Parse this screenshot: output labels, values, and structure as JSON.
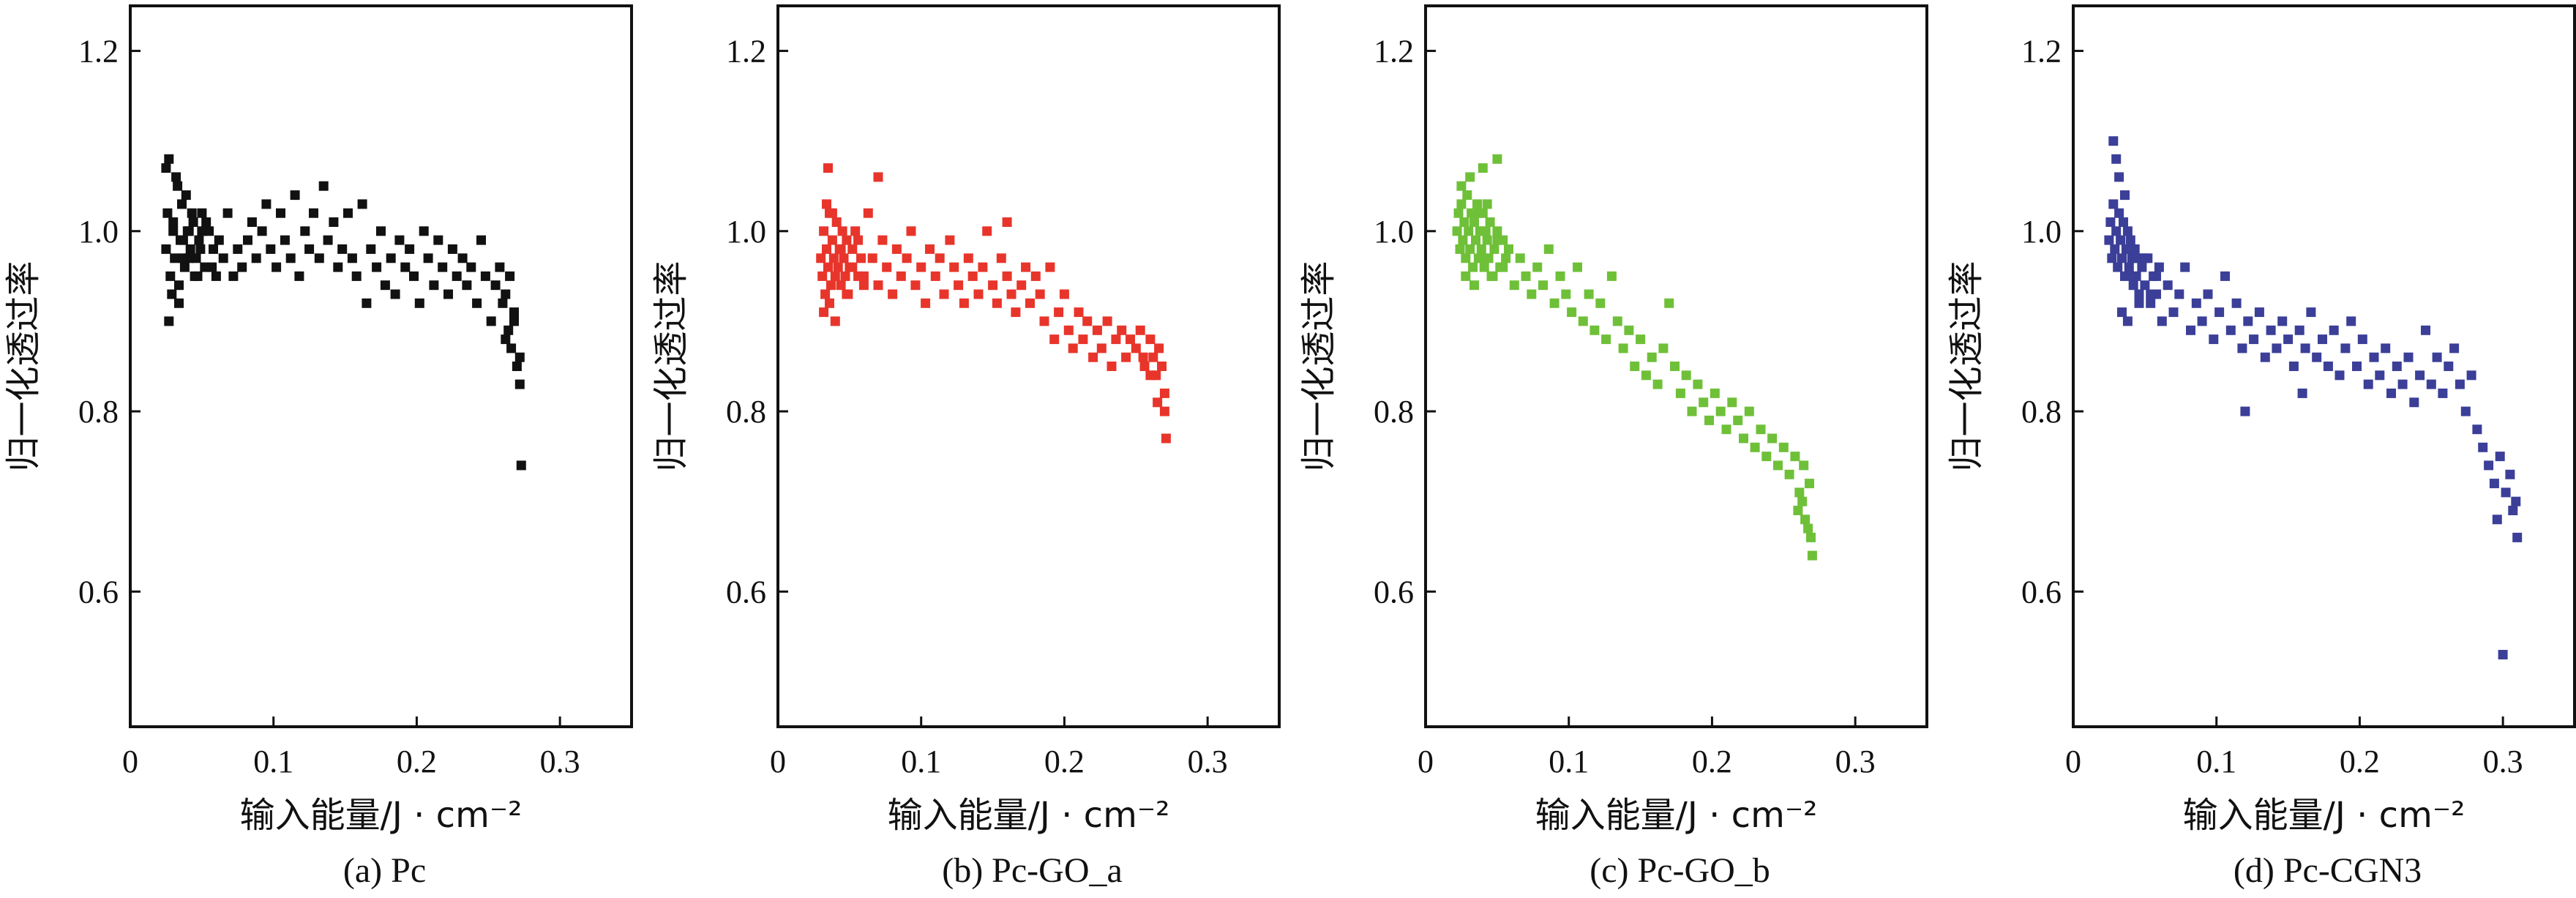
{
  "figure": {
    "colors": {
      "black": "#111111",
      "red": "#e8352b",
      "green": "#6fc039",
      "blue": "#3b3f98"
    }
  },
  "chart_data": [
    {
      "type": "scatter",
      "caption": "(a) Pc",
      "xlabel": "输入能量/J · cm⁻²",
      "ylabel": "归一化透过率",
      "xlim": [
        0,
        0.35
      ],
      "ylim": [
        0.45,
        1.25
      ],
      "xticks": [
        0,
        0.1,
        0.2,
        0.3
      ],
      "xtick_labels": [
        "0",
        "0.1",
        "0.2",
        "0.3"
      ],
      "yticks": [
        0.6,
        0.8,
        1.0,
        1.2
      ],
      "ytick_labels": [
        "0.6",
        "0.8",
        "1.0",
        "1.2"
      ],
      "grid": false,
      "color": "#111111",
      "x": [
        0.025,
        0.026,
        0.028,
        0.03,
        0.031,
        0.033,
        0.035,
        0.036,
        0.038,
        0.04,
        0.042,
        0.044,
        0.046,
        0.048,
        0.05,
        0.052,
        0.055,
        0.058,
        0.06,
        0.025,
        0.027,
        0.029,
        0.032,
        0.034,
        0.037,
        0.039,
        0.041,
        0.043,
        0.047,
        0.05,
        0.027,
        0.03,
        0.034,
        0.037,
        0.041,
        0.045,
        0.049,
        0.053,
        0.057,
        0.062,
        0.065,
        0.068,
        0.072,
        0.075,
        0.078,
        0.082,
        0.085,
        0.088,
        0.092,
        0.095,
        0.098,
        0.102,
        0.105,
        0.108,
        0.112,
        0.115,
        0.118,
        0.122,
        0.125,
        0.128,
        0.132,
        0.135,
        0.138,
        0.142,
        0.145,
        0.148,
        0.152,
        0.155,
        0.158,
        0.162,
        0.165,
        0.168,
        0.172,
        0.175,
        0.178,
        0.182,
        0.185,
        0.188,
        0.192,
        0.195,
        0.198,
        0.202,
        0.205,
        0.208,
        0.212,
        0.215,
        0.218,
        0.222,
        0.225,
        0.228,
        0.232,
        0.235,
        0.238,
        0.242,
        0.245,
        0.248,
        0.252,
        0.255,
        0.258,
        0.26,
        0.262,
        0.264,
        0.266,
        0.268,
        0.27,
        0.272,
        0.273,
        0.268,
        0.265,
        0.262,
        0.272
      ],
      "y": [
        0.98,
        1.02,
        0.95,
        1.0,
        0.97,
        1.05,
        0.99,
        1.03,
        0.96,
        1.0,
        0.98,
        1.01,
        0.97,
        0.99,
        1.02,
        0.96,
        1.0,
        0.98,
        0.95,
        1.07,
        1.08,
        0.93,
        1.06,
        0.92,
        0.99,
        1.04,
        0.97,
        1.02,
        0.95,
        1.0,
        0.9,
        1.01,
        0.94,
        0.97,
        1.0,
        0.95,
        0.98,
        1.01,
        0.96,
        0.99,
        0.97,
        1.02,
        0.95,
        0.98,
        0.96,
        0.99,
        1.01,
        0.97,
        1.0,
        1.03,
        0.98,
        0.96,
        1.02,
        0.99,
        0.97,
        1.04,
        0.95,
        1.0,
        0.98,
        1.02,
        0.97,
        1.05,
        0.99,
        1.01,
        0.96,
        0.98,
        1.02,
        0.97,
        0.95,
        1.03,
        0.92,
        0.98,
        0.96,
        1.0,
        0.94,
        0.97,
        0.93,
        0.99,
        0.96,
        0.98,
        0.95,
        0.92,
        1.0,
        0.97,
        0.94,
        0.99,
        0.96,
        0.93,
        0.98,
        0.95,
        0.97,
        0.94,
        0.96,
        0.92,
        0.99,
        0.95,
        0.9,
        0.94,
        0.96,
        0.92,
        0.88,
        0.89,
        0.87,
        0.9,
        0.85,
        0.86,
        0.74,
        0.91,
        0.95,
        0.93,
        0.83
      ]
    },
    {
      "type": "scatter",
      "caption": "(b) Pc-GO_a",
      "xlabel": "输入能量/J · cm⁻²",
      "ylabel": "归一化透过率",
      "xlim": [
        0,
        0.35
      ],
      "ylim": [
        0.45,
        1.25
      ],
      "xticks": [
        0,
        0.1,
        0.2,
        0.3
      ],
      "xtick_labels": [
        "0",
        "0.1",
        "0.2",
        "0.3"
      ],
      "yticks": [
        0.6,
        0.8,
        1.0,
        1.2
      ],
      "ytick_labels": [
        "0.6",
        "0.8",
        "1.0",
        "1.2"
      ],
      "grid": false,
      "color": "#e8352b",
      "x": [
        0.03,
        0.031,
        0.032,
        0.033,
        0.034,
        0.035,
        0.036,
        0.037,
        0.038,
        0.039,
        0.04,
        0.041,
        0.042,
        0.043,
        0.044,
        0.045,
        0.046,
        0.047,
        0.048,
        0.049,
        0.05,
        0.052,
        0.054,
        0.056,
        0.058,
        0.06,
        0.032,
        0.034,
        0.036,
        0.038,
        0.04,
        0.044,
        0.048,
        0.052,
        0.056,
        0.06,
        0.063,
        0.066,
        0.07,
        0.073,
        0.076,
        0.08,
        0.083,
        0.086,
        0.09,
        0.093,
        0.096,
        0.1,
        0.103,
        0.106,
        0.11,
        0.113,
        0.116,
        0.12,
        0.123,
        0.126,
        0.13,
        0.133,
        0.136,
        0.14,
        0.143,
        0.146,
        0.15,
        0.153,
        0.156,
        0.16,
        0.163,
        0.166,
        0.17,
        0.173,
        0.176,
        0.18,
        0.183,
        0.186,
        0.19,
        0.193,
        0.196,
        0.2,
        0.203,
        0.206,
        0.21,
        0.213,
        0.216,
        0.22,
        0.223,
        0.226,
        0.23,
        0.233,
        0.236,
        0.24,
        0.243,
        0.246,
        0.25,
        0.253,
        0.256,
        0.26,
        0.262,
        0.264,
        0.266,
        0.268,
        0.27,
        0.271,
        0.265,
        0.26,
        0.255,
        0.27,
        0.035,
        0.07,
        0.16
      ],
      "y": [
        0.97,
        0.95,
        1.0,
        0.93,
        0.98,
        0.96,
        1.02,
        0.94,
        0.99,
        0.97,
        0.95,
        1.01,
        0.96,
        0.98,
        0.94,
        1.0,
        0.97,
        0.95,
        0.99,
        0.93,
        0.96,
        0.98,
        1.0,
        0.95,
        0.97,
        0.94,
        0.91,
        1.03,
        0.92,
        1.02,
        0.9,
        0.98,
        0.93,
        0.96,
        0.99,
        0.95,
        1.02,
        0.97,
        0.94,
        0.99,
        0.96,
        0.93,
        0.98,
        0.95,
        0.97,
        1.0,
        0.94,
        0.96,
        0.92,
        0.98,
        0.95,
        0.97,
        0.93,
        0.99,
        0.96,
        0.94,
        0.92,
        0.97,
        0.95,
        0.93,
        0.96,
        1.0,
        0.94,
        0.92,
        0.97,
        0.95,
        0.93,
        0.91,
        0.94,
        0.96,
        0.92,
        0.95,
        0.93,
        0.9,
        0.96,
        0.88,
        0.91,
        0.93,
        0.89,
        0.87,
        0.91,
        0.88,
        0.9,
        0.86,
        0.89,
        0.87,
        0.9,
        0.85,
        0.88,
        0.89,
        0.86,
        0.88,
        0.87,
        0.89,
        0.85,
        0.88,
        0.86,
        0.84,
        0.87,
        0.85,
        0.82,
        0.77,
        0.81,
        0.84,
        0.86,
        0.8,
        1.07,
        1.06,
        1.01
      ]
    },
    {
      "type": "scatter",
      "caption": "(c) Pc-GO_b",
      "xlabel": "输入能量/J · cm⁻²",
      "ylabel": "归一化透过率",
      "xlim": [
        0,
        0.35
      ],
      "ylim": [
        0.45,
        1.25
      ],
      "xticks": [
        0,
        0.1,
        0.2,
        0.3
      ],
      "xtick_labels": [
        "0",
        "0.1",
        "0.2",
        "0.3"
      ],
      "yticks": [
        0.6,
        0.8,
        1.0,
        1.2
      ],
      "ytick_labels": [
        "0.6",
        "0.8",
        "1.0",
        "1.2"
      ],
      "grid": false,
      "color": "#6fc039",
      "x": [
        0.022,
        0.023,
        0.024,
        0.025,
        0.026,
        0.027,
        0.028,
        0.029,
        0.03,
        0.031,
        0.032,
        0.033,
        0.034,
        0.035,
        0.036,
        0.037,
        0.038,
        0.039,
        0.04,
        0.041,
        0.042,
        0.043,
        0.044,
        0.045,
        0.046,
        0.048,
        0.05,
        0.052,
        0.054,
        0.056,
        0.025,
        0.028,
        0.031,
        0.034,
        0.037,
        0.04,
        0.043,
        0.047,
        0.05,
        0.054,
        0.058,
        0.062,
        0.066,
        0.07,
        0.074,
        0.078,
        0.082,
        0.086,
        0.09,
        0.094,
        0.098,
        0.102,
        0.106,
        0.11,
        0.114,
        0.118,
        0.122,
        0.126,
        0.13,
        0.134,
        0.138,
        0.142,
        0.146,
        0.15,
        0.154,
        0.158,
        0.162,
        0.166,
        0.17,
        0.174,
        0.178,
        0.182,
        0.186,
        0.19,
        0.194,
        0.198,
        0.202,
        0.206,
        0.21,
        0.214,
        0.218,
        0.222,
        0.226,
        0.23,
        0.234,
        0.238,
        0.242,
        0.246,
        0.25,
        0.254,
        0.258,
        0.261,
        0.263,
        0.265,
        0.267,
        0.269,
        0.27,
        0.268,
        0.264,
        0.26,
        0.04,
        0.05
      ],
      "y": [
        1.0,
        1.02,
        0.98,
        1.03,
        0.99,
        1.01,
        0.97,
        1.04,
        1.0,
        0.98,
        1.02,
        0.96,
        1.01,
        0.99,
        1.03,
        0.97,
        1.0,
        0.98,
        1.02,
        0.96,
        1.0,
        0.99,
        0.97,
        1.01,
        0.95,
        0.98,
        1.0,
        0.96,
        0.99,
        0.97,
        1.05,
        0.95,
        1.06,
        0.94,
        1.02,
        0.97,
        1.03,
        0.95,
        0.99,
        0.96,
        0.98,
        0.94,
        0.97,
        0.95,
        0.93,
        0.96,
        0.94,
        0.98,
        0.92,
        0.95,
        0.93,
        0.91,
        0.96,
        0.9,
        0.93,
        0.89,
        0.92,
        0.88,
        0.95,
        0.9,
        0.87,
        0.89,
        0.85,
        0.88,
        0.84,
        0.86,
        0.83,
        0.87,
        0.92,
        0.85,
        0.82,
        0.84,
        0.8,
        0.83,
        0.81,
        0.79,
        0.82,
        0.8,
        0.78,
        0.81,
        0.79,
        0.77,
        0.8,
        0.76,
        0.78,
        0.75,
        0.77,
        0.74,
        0.76,
        0.73,
        0.75,
        0.71,
        0.7,
        0.68,
        0.67,
        0.66,
        0.64,
        0.72,
        0.74,
        0.69,
        1.07,
        1.08
      ]
    },
    {
      "type": "scatter",
      "caption": "(d) Pc-CGN3",
      "xlabel": "输入能量/J · cm⁻²",
      "ylabel": "归一化透过率",
      "xlim": [
        0,
        0.35
      ],
      "ylim": [
        0.45,
        1.25
      ],
      "xticks": [
        0,
        0.1,
        0.2,
        0.3
      ],
      "xtick_labels": [
        "0",
        "0.1",
        "0.2",
        "0.3"
      ],
      "yticks": [
        0.6,
        0.8,
        1.0,
        1.2
      ],
      "ytick_labels": [
        "0.6",
        "0.8",
        "1.0",
        "1.2"
      ],
      "grid": false,
      "color": "#3b3f98",
      "x": [
        0.025,
        0.026,
        0.027,
        0.028,
        0.029,
        0.03,
        0.031,
        0.032,
        0.033,
        0.034,
        0.035,
        0.036,
        0.037,
        0.038,
        0.039,
        0.04,
        0.041,
        0.042,
        0.043,
        0.044,
        0.045,
        0.046,
        0.048,
        0.05,
        0.052,
        0.054,
        0.056,
        0.058,
        0.06,
        0.028,
        0.03,
        0.032,
        0.034,
        0.036,
        0.038,
        0.042,
        0.046,
        0.05,
        0.054,
        0.058,
        0.062,
        0.066,
        0.07,
        0.074,
        0.078,
        0.082,
        0.086,
        0.09,
        0.094,
        0.098,
        0.102,
        0.106,
        0.11,
        0.114,
        0.118,
        0.122,
        0.126,
        0.13,
        0.134,
        0.138,
        0.142,
        0.146,
        0.15,
        0.154,
        0.158,
        0.162,
        0.166,
        0.17,
        0.174,
        0.178,
        0.182,
        0.186,
        0.19,
        0.194,
        0.198,
        0.202,
        0.206,
        0.21,
        0.214,
        0.218,
        0.222,
        0.226,
        0.23,
        0.234,
        0.238,
        0.242,
        0.246,
        0.25,
        0.254,
        0.258,
        0.262,
        0.266,
        0.27,
        0.274,
        0.278,
        0.282,
        0.286,
        0.29,
        0.294,
        0.298,
        0.302,
        0.305,
        0.307,
        0.309,
        0.31,
        0.3,
        0.296,
        0.12,
        0.16
      ],
      "y": [
        0.99,
        1.01,
        0.97,
        1.03,
        0.98,
        1.0,
        0.96,
        1.02,
        0.99,
        0.97,
        1.01,
        0.95,
        0.98,
        1.0,
        0.96,
        0.99,
        0.97,
        0.94,
        0.98,
        0.95,
        0.97,
        0.93,
        0.96,
        0.94,
        0.97,
        0.92,
        0.95,
        0.93,
        0.96,
        1.1,
        1.08,
        1.06,
        0.91,
        1.04,
        0.9,
        0.95,
        0.92,
        0.97,
        0.93,
        0.95,
        0.9,
        0.94,
        0.91,
        0.93,
        0.96,
        0.89,
        0.92,
        0.9,
        0.93,
        0.88,
        0.91,
        0.95,
        0.89,
        0.92,
        0.87,
        0.9,
        0.88,
        0.91,
        0.86,
        0.89,
        0.87,
        0.9,
        0.88,
        0.85,
        0.89,
        0.87,
        0.91,
        0.86,
        0.88,
        0.85,
        0.89,
        0.84,
        0.87,
        0.9,
        0.85,
        0.88,
        0.83,
        0.86,
        0.84,
        0.87,
        0.82,
        0.85,
        0.83,
        0.86,
        0.81,
        0.84,
        0.89,
        0.83,
        0.86,
        0.82,
        0.85,
        0.87,
        0.83,
        0.8,
        0.84,
        0.78,
        0.76,
        0.74,
        0.72,
        0.75,
        0.71,
        0.73,
        0.69,
        0.7,
        0.66,
        0.53,
        0.68,
        0.8,
        0.82
      ]
    }
  ]
}
